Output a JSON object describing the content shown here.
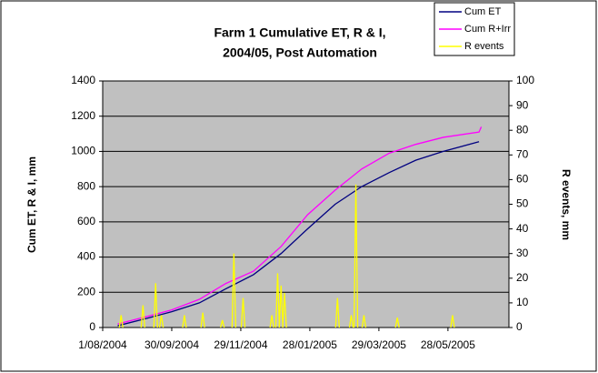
{
  "chart_data": {
    "type": "line",
    "title": [
      "Farm 1  Cumulative ET, R & I,",
      "2004/05, Post Automation"
    ],
    "y_label": "Cum ET, R & I,  mm",
    "y2_label": "R events, mm",
    "xlim": [
      "2004-08-01",
      "2005-07-20"
    ],
    "xticks": [
      {
        "value": "2004-08-01",
        "label": "1/08/2004"
      },
      {
        "value": "2004-09-30",
        "label": "30/09/2004"
      },
      {
        "value": "2004-11-29",
        "label": "29/11/2004"
      },
      {
        "value": "2005-01-28",
        "label": "28/01/2005"
      },
      {
        "value": "2005-03-29",
        "label": "29/03/2005"
      },
      {
        "value": "2005-05-28",
        "label": "28/05/2005"
      }
    ],
    "ylim": [
      0,
      1400
    ],
    "yticks": [
      0,
      200,
      400,
      600,
      800,
      1000,
      1200,
      1400
    ],
    "y2lim": [
      0,
      100
    ],
    "y2ticks": [
      0,
      10,
      20,
      30,
      40,
      50,
      60,
      70,
      80,
      90,
      100
    ],
    "grid": true,
    "legend": "top-right",
    "series": [
      {
        "name": "Cum ET",
        "color": "#000080",
        "x": [
          "2004-08-14",
          "2004-09-07",
          "2004-09-30",
          "2004-10-24",
          "2004-11-16",
          "2004-12-10",
          "2005-01-03",
          "2005-01-26",
          "2005-02-19",
          "2005-03-14",
          "2005-04-07",
          "2005-04-30",
          "2005-05-24",
          "2005-06-24"
        ],
        "values": [
          10,
          50,
          90,
          140,
          220,
          300,
          420,
          560,
          700,
          800,
          880,
          950,
          1000,
          1055
        ]
      },
      {
        "name": "Cum R+Irr",
        "color": "#ff00ff",
        "x": [
          "2004-08-14",
          "2004-09-07",
          "2004-09-30",
          "2004-10-24",
          "2004-11-16",
          "2004-12-10",
          "2005-01-03",
          "2005-01-26",
          "2005-02-19",
          "2005-03-14",
          "2005-04-07",
          "2005-04-30",
          "2005-05-24",
          "2005-06-24",
          "2005-06-26"
        ],
        "values": [
          20,
          60,
          100,
          160,
          250,
          320,
          460,
          640,
          780,
          900,
          990,
          1040,
          1080,
          1110,
          1140
        ]
      },
      {
        "name": "R events",
        "color": "#ffff00",
        "axis": "y2",
        "x": [
          "2004-08-17",
          "2004-09-05",
          "2004-09-16",
          "2004-09-21",
          "2004-10-11",
          "2004-10-27",
          "2004-11-13",
          "2004-11-23",
          "2004-12-01",
          "2004-12-26",
          "2004-12-31",
          "2005-01-03",
          "2005-01-06",
          "2005-02-21",
          "2005-03-05",
          "2005-03-09",
          "2005-03-16",
          "2005-04-14",
          "2005-06-01"
        ],
        "values": [
          5,
          9,
          18,
          5,
          5,
          6,
          3,
          30,
          12,
          5,
          22,
          17,
          14,
          12,
          5,
          58,
          5,
          4,
          5
        ]
      }
    ]
  }
}
